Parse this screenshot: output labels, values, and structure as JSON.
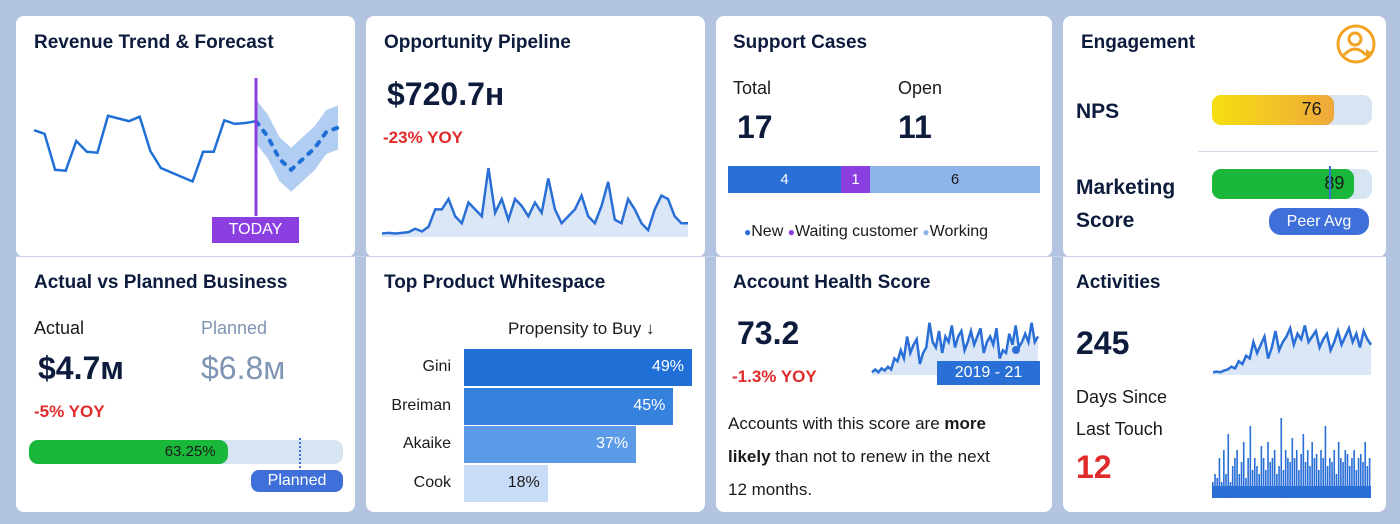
{
  "revenue": {
    "title": "Revenue Trend & Forecast",
    "today_label": "TODAY",
    "chart_data": {
      "type": "line",
      "history": [
        0.62,
        0.58,
        0.18,
        0.17,
        0.5,
        0.38,
        0.37,
        0.78,
        0.75,
        0.72,
        0.77,
        0.39,
        0.2,
        0.15,
        0.1,
        0.05,
        0.38,
        0.38,
        0.73,
        0.69,
        0.7,
        0.72
      ],
      "forecast": [
        0.72,
        0.55,
        0.3,
        0.18,
        0.3,
        0.42,
        0.6,
        0.65
      ]
    }
  },
  "pipeline": {
    "title": "Opportunity Pipeline",
    "value": "$720.7ʜ",
    "yoy": "-23% YOY",
    "chart_data": {
      "type": "area",
      "values": [
        0.05,
        0.06,
        0.05,
        0.06,
        0.07,
        0.12,
        0.08,
        0.15,
        0.4,
        0.4,
        0.55,
        0.3,
        0.2,
        0.5,
        0.4,
        0.3,
        1.0,
        0.35,
        0.55,
        0.25,
        0.55,
        0.45,
        0.3,
        0.5,
        0.35,
        0.85,
        0.4,
        0.2,
        0.3,
        0.4,
        0.6,
        0.3,
        0.2,
        0.45,
        0.8,
        0.25,
        0.2,
        0.55,
        0.4,
        0.2,
        0.1,
        0.4,
        0.6,
        0.55,
        0.3,
        0.2,
        0.2
      ]
    }
  },
  "support": {
    "title": "Support Cases",
    "total_label": "Total",
    "total_value": "17",
    "open_label": "Open",
    "open_value": "11",
    "chart_data": {
      "type": "bar",
      "categories": [
        "New",
        "Waiting customer",
        "Working"
      ],
      "values": [
        4,
        1,
        6
      ]
    },
    "bar_texts": [
      "4",
      "1",
      "6"
    ],
    "legend": [
      "New",
      "Waiting customer",
      "Working"
    ],
    "colors": [
      "#2a6fd6",
      "#8b3fe0",
      "#8fb4ea"
    ]
  },
  "engagement": {
    "title": "Engagement",
    "nps_label": "NPS",
    "nps_value": "76",
    "nps_fraction": 0.76,
    "marketing_label_1": "Marketing",
    "marketing_label_2": "Score",
    "marketing_value": "89",
    "marketing_fraction": 0.89,
    "peer_label": "Peer Avg",
    "peer_fraction": 0.73,
    "icon": "user-refresh-icon"
  },
  "actual": {
    "title": "Actual vs Planned Business",
    "actual_label": "Actual",
    "actual_value": "$4.7м",
    "planned_label": "Planned",
    "planned_value": "$6.8м",
    "yoy": "-5% YOY",
    "progress_label": "63.25%",
    "progress_fraction": 0.6325,
    "planned_marker_fraction": 0.86,
    "planned_pill": "Planned"
  },
  "whitespace": {
    "title": "Top Product Whitespace",
    "axis_label": "Propensity to Buy ↓",
    "chart_data": {
      "type": "bar",
      "categories": [
        "Gini",
        "Breiman",
        "Akaike",
        "Cook"
      ],
      "values": [
        49,
        45,
        37,
        18
      ],
      "value_labels": [
        "49%",
        "45%",
        "37%",
        "18%"
      ],
      "colors": [
        "#1f6fd6",
        "#3582de",
        "#5a9ae6",
        "#c9dcf7"
      ]
    }
  },
  "health": {
    "title": "Account Health Score",
    "value": "73.2",
    "yoy": "-1.3% YOY",
    "range_label": "2019 - 21",
    "desc_1a": "Accounts with this score are ",
    "desc_1b": "more",
    "desc_2a": "likely",
    "desc_2b": " than not to renew in the next",
    "desc_3": "12  months.",
    "chart_data": {
      "type": "line",
      "values": [
        0.05,
        0.1,
        0.05,
        0.12,
        0.08,
        0.15,
        0.1,
        0.3,
        0.25,
        0.45,
        0.3,
        0.7,
        0.4,
        0.55,
        0.65,
        0.2,
        0.4,
        0.5,
        0.95,
        0.6,
        0.5,
        0.8,
        0.4,
        0.7,
        0.6,
        0.9,
        0.5,
        0.7,
        0.8,
        0.45,
        0.6,
        0.8,
        0.55,
        0.7,
        0.85,
        0.4,
        0.6,
        0.7,
        0.55,
        0.85,
        0.3,
        0.45,
        0.4,
        0.75,
        0.55,
        0.9,
        0.5,
        0.6,
        0.75,
        0.6,
        0.95,
        0.6,
        0.7
      ]
    }
  },
  "activities": {
    "title": "Activities",
    "value": "245",
    "since_1": "Days Since",
    "since_2": "Last Touch",
    "since_value": "12",
    "chart_data": {
      "type": "line",
      "values": [
        0.05,
        0.06,
        0.05,
        0.08,
        0.1,
        0.15,
        0.12,
        0.25,
        0.2,
        0.35,
        0.3,
        0.6,
        0.4,
        0.55,
        0.7,
        0.3,
        0.5,
        0.8,
        0.45,
        0.6,
        0.7,
        0.85,
        0.55,
        0.75,
        0.65,
        0.9,
        0.6,
        0.7,
        0.8,
        0.5,
        0.65,
        0.75,
        0.45,
        0.6,
        0.8,
        0.55,
        0.7,
        0.85,
        0.6,
        0.75,
        0.5,
        0.8,
        0.65,
        0.55
      ]
    },
    "bars": [
      0.2,
      0.3,
      0.25,
      0.5,
      0.2,
      0.6,
      0.3,
      0.8,
      0.2,
      0.4,
      0.5,
      0.6,
      0.3,
      0.45,
      0.7,
      0.25,
      0.5,
      0.9,
      0.35,
      0.5,
      0.4,
      0.3,
      0.65,
      0.5,
      0.35,
      0.7,
      0.45,
      0.5,
      0.6,
      0.3,
      0.4,
      1.0,
      0.35,
      0.6,
      0.5,
      0.45,
      0.75,
      0.5,
      0.6,
      0.35,
      0.55,
      0.8,
      0.45,
      0.6,
      0.4,
      0.7,
      0.5,
      0.55,
      0.35,
      0.6,
      0.5,
      0.9,
      0.4,
      0.5,
      0.45,
      0.6,
      0.3,
      0.7,
      0.5,
      0.45,
      0.6,
      0.55,
      0.4,
      0.5,
      0.6,
      0.35,
      0.5,
      0.55,
      0.45,
      0.7,
      0.4,
      0.5
    ]
  }
}
